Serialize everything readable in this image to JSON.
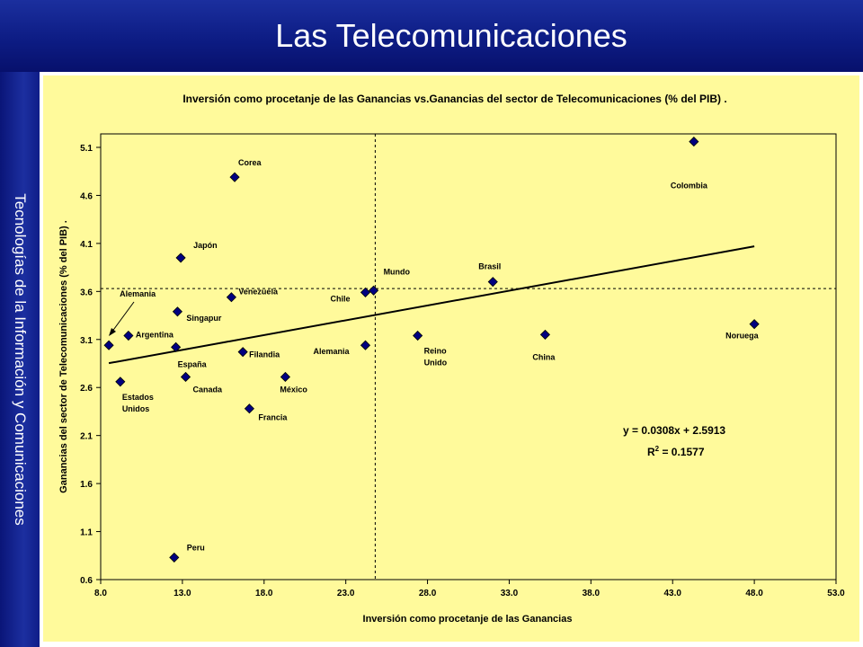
{
  "slide": {
    "title": "Las Telecomunicaciones",
    "side_text": "Tecnologías de la Información y Comunicaciones",
    "colors": {
      "bar": "#0d1c84",
      "panel": "#fffa9b",
      "marker": "#000080"
    }
  },
  "chart_data": {
    "type": "scatter",
    "title": "Inversión como procetanje de las Ganancias vs.Ganancias del sector de Telecomunicaciones (% del PIB) .",
    "xlabel": "Inversión como procetanje de las Ganancias",
    "ylabel": "Ganancias del sector de Telecomunicaciones (% del PIB) .",
    "xlim": [
      8.0,
      53.0
    ],
    "ylim": [
      0.6,
      5.3
    ],
    "xticks": [
      "8.0",
      "13.0",
      "18.0",
      "23.0",
      "28.0",
      "33.0",
      "38.0",
      "43.0",
      "48.0",
      "53.0"
    ],
    "yticks": [
      "0.6",
      "1.1",
      "1.6",
      "2.1",
      "2.6",
      "3.1",
      "3.6",
      "4.1",
      "4.6",
      "5.1"
    ],
    "grid": false,
    "points": [
      {
        "label": "Corea",
        "x": 16.2,
        "y": 4.79
      },
      {
        "label": "Colombia",
        "x": 44.3,
        "y": 5.16
      },
      {
        "label": "Japón",
        "x": 12.9,
        "y": 3.95
      },
      {
        "label": "Venezuela",
        "x": 16.0,
        "y": 3.54
      },
      {
        "label": "Singapur",
        "x": 12.7,
        "y": 3.39
      },
      {
        "label": "Alemania",
        "x": 8.5,
        "y": 3.04
      },
      {
        "label": "Argentina",
        "x": 9.7,
        "y": 3.14
      },
      {
        "label": "España",
        "x": 12.6,
        "y": 3.02
      },
      {
        "label": "Estados Unidos",
        "x": 9.2,
        "y": 2.66
      },
      {
        "label": "Canada",
        "x": 13.2,
        "y": 2.71
      },
      {
        "label": "Filandia",
        "x": 16.7,
        "y": 2.97
      },
      {
        "label": "México",
        "x": 19.3,
        "y": 2.71
      },
      {
        "label": "Francia",
        "x": 17.1,
        "y": 2.38
      },
      {
        "label": "Peru",
        "x": 12.5,
        "y": 0.83
      },
      {
        "label": "Chile",
        "x": 24.2,
        "y": 3.59
      },
      {
        "label": "Mundo",
        "x": 24.7,
        "y": 3.61
      },
      {
        "label": "Alemania",
        "x": 24.2,
        "y": 3.04
      },
      {
        "label": "Brasil",
        "x": 32.0,
        "y": 3.7
      },
      {
        "label": "Reino Unido",
        "x": 27.4,
        "y": 3.14
      },
      {
        "label": "China",
        "x": 35.2,
        "y": 3.15
      },
      {
        "label": "Noruega",
        "x": 48.0,
        "y": 3.26
      }
    ],
    "trendline": {
      "slope": 0.0308,
      "intercept": 2.5913,
      "x_range": [
        8.0,
        48.0
      ]
    },
    "reference_lines": {
      "x": 24.8,
      "y": 3.63
    },
    "equation": {
      "line1": "y = 0.0308x + 2.5913",
      "r2_prefix": "R",
      "r2_sup": "2",
      "r2_value": " = 0.1577"
    }
  }
}
